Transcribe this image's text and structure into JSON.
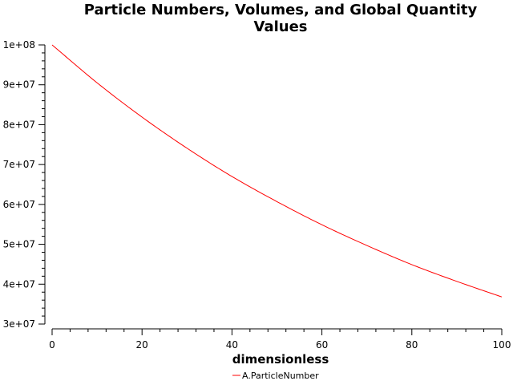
{
  "chart_data": {
    "type": "line",
    "title_lines": [
      "Particle Numbers, Volumes, and Global Quantity",
      "Values"
    ],
    "xlabel": "dimensionless",
    "ylabel": "",
    "xlim": [
      0,
      100
    ],
    "ylim": [
      30000000,
      100000000
    ],
    "x_tick_labels": [
      "0",
      "20",
      "40",
      "60",
      "80",
      "100"
    ],
    "y_tick_labels": [
      "3e+07",
      "4e+07",
      "5e+07",
      "6e+07",
      "7e+07",
      "8e+07",
      "9e+07",
      "1e+08"
    ],
    "grid": false,
    "legend_position": "bottom-center",
    "series": [
      {
        "name": "A.ParticleNumber",
        "color": "#ff0000",
        "x": [
          0,
          10,
          20,
          30,
          40,
          50,
          60,
          70,
          80,
          90,
          100
        ],
        "y": [
          100000000,
          90500000,
          81900000,
          74100000,
          67000000,
          60700000,
          54900000,
          49700000,
          44900000,
          40700000,
          36800000
        ]
      }
    ]
  }
}
